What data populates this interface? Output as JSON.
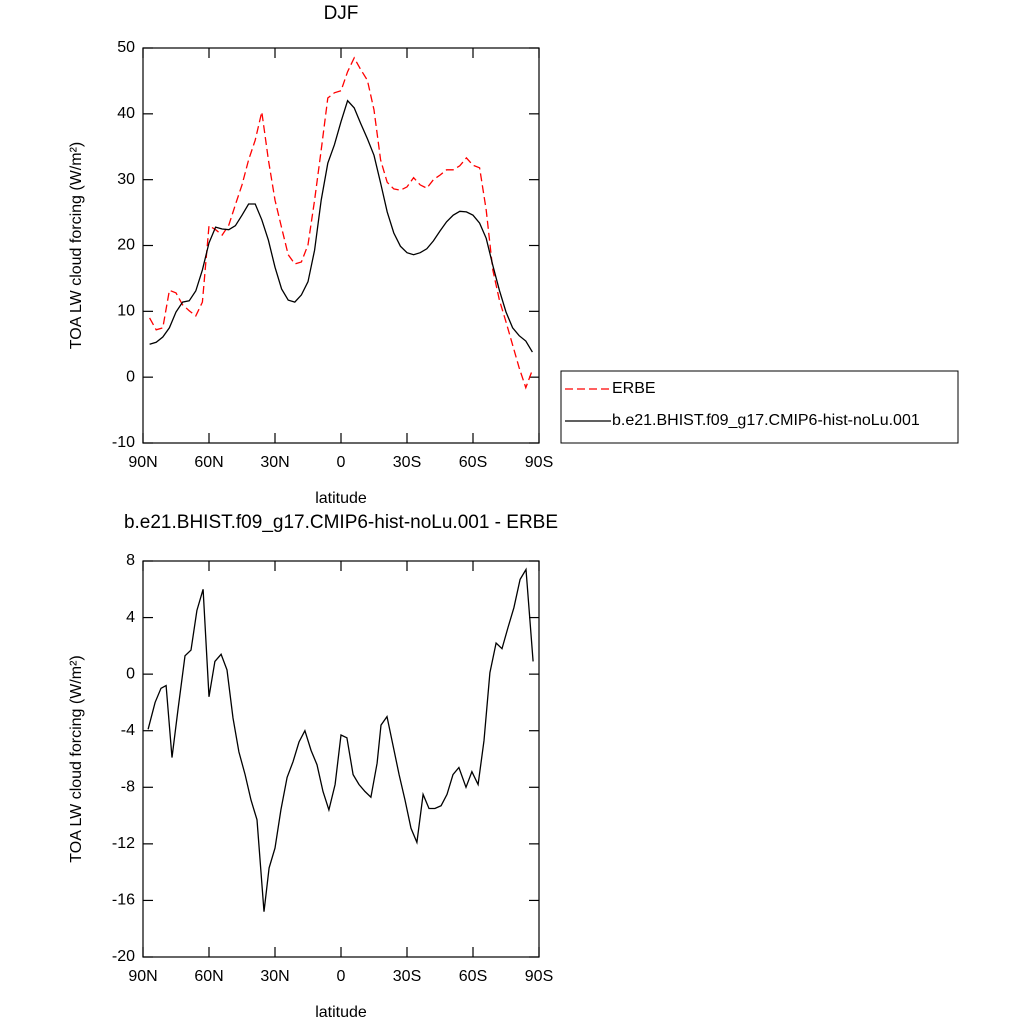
{
  "chart_data": [
    {
      "type": "line",
      "title": "DJF",
      "xlabel": "latitude",
      "ylabel": "TOA LW cloud forcing (W/m²)",
      "x": [
        87,
        84,
        81,
        78,
        75,
        72,
        69,
        66,
        63,
        60,
        57,
        54,
        51,
        48,
        45,
        42,
        39,
        36,
        33,
        30,
        27,
        24,
        21,
        18,
        15,
        12,
        9,
        6,
        3,
        0,
        -3,
        -6,
        -9,
        -12,
        -15,
        -18,
        -21,
        -24,
        -27,
        -30,
        -33,
        -36,
        -39,
        -42,
        -45,
        -48,
        -51,
        -54,
        -57,
        -60,
        -63,
        -66,
        -69,
        -72,
        -75,
        -78,
        -81,
        -84,
        -87
      ],
      "series": [
        {
          "name": "ERBE",
          "color": "#ff0000",
          "line_style": "dashed",
          "values": [
            9.0,
            7.2,
            7.5,
            13.2,
            12.8,
            11.0,
            10.1,
            9.3,
            11.4,
            23.0,
            22.4,
            21.6,
            23.1,
            26.2,
            29.2,
            33.0,
            36.0,
            40.3,
            33.0,
            26.9,
            22.7,
            18.6,
            17.2,
            17.5,
            20.1,
            26.9,
            34.5,
            42.4,
            43.2,
            43.5,
            46.4,
            48.5,
            46.7,
            45.1,
            40.6,
            33.0,
            29.6,
            28.6,
            28.4,
            28.9,
            30.3,
            29.2,
            28.7,
            30.0,
            30.7,
            31.5,
            31.5,
            32.1,
            33.3,
            32.2,
            31.8,
            25.4,
            16.3,
            11.7,
            8.4,
            4.9,
            1.4,
            -1.6,
            1.1
          ]
        },
        {
          "name": "b.e21.BHIST.f09_g17.CMIP6-hist-noLu.001",
          "color": "#000000",
          "line_style": "solid",
          "values": [
            5.0,
            5.3,
            6.1,
            7.5,
            9.9,
            11.4,
            11.6,
            13.1,
            16.3,
            20.4,
            22.8,
            22.5,
            22.4,
            23.0,
            24.6,
            26.3,
            26.3,
            23.9,
            20.8,
            16.7,
            13.4,
            11.7,
            11.4,
            12.5,
            14.5,
            19.3,
            26.9,
            32.5,
            35.3,
            38.8,
            42.0,
            40.9,
            38.5,
            36.2,
            33.7,
            29.5,
            25.1,
            21.9,
            19.9,
            18.9,
            18.6,
            18.9,
            19.5,
            20.7,
            22.2,
            23.6,
            24.6,
            25.2,
            25.1,
            24.6,
            23.4,
            21.1,
            17.0,
            13.2,
            9.9,
            7.5,
            6.3,
            5.5,
            3.8
          ]
        }
      ],
      "xlim": [
        90,
        -90
      ],
      "xticks": [
        {
          "value": 90,
          "label": "90N"
        },
        {
          "value": 60,
          "label": "60N"
        },
        {
          "value": 30,
          "label": "30N"
        },
        0,
        {
          "value": -30,
          "label": "30S"
        },
        {
          "value": -60,
          "label": "60S"
        },
        {
          "value": -90,
          "label": "90S"
        }
      ],
      "ylim": [
        -10,
        50
      ],
      "yticks": [
        -10,
        0,
        10,
        20,
        30,
        40,
        50
      ],
      "legend": "right"
    },
    {
      "type": "line",
      "title": "b.e21.BHIST.f09_g17.CMIP6-hist-noLu.001 - ERBE",
      "xlabel": "latitude",
      "ylabel": "TOA LW cloud forcing (W/m²)",
      "x": [
        87.7,
        84.5,
        81.8,
        79.5,
        76.8,
        74.1,
        70.9,
        68.2,
        65.5,
        62.7,
        60,
        57.3,
        54.5,
        51.8,
        49.1,
        46.4,
        43.6,
        40.9,
        38.2,
        35,
        32.7,
        30,
        27.3,
        24.5,
        21.8,
        19.1,
        16.4,
        13.6,
        10.9,
        8.2,
        5.5,
        2.7,
        0,
        -2.7,
        -5.5,
        -8.2,
        -10.9,
        -13.6,
        -16.4,
        -18.2,
        -20.9,
        -23.6,
        -26.4,
        -29.1,
        -31.8,
        -34.5,
        -37.3,
        -40,
        -42.7,
        -45.5,
        -48.2,
        -50.9,
        -53.6,
        -56.8,
        -59.5,
        -62.3,
        -65,
        -67.7,
        -70.5,
        -73.2,
        -75.9,
        -78.6,
        -81.4,
        -84.1,
        -87.3
      ],
      "values": [
        -3.9,
        -2.0,
        -1.0,
        -0.8,
        -5.9,
        -2.5,
        1.3,
        1.7,
        4.5,
        6.0,
        -1.6,
        0.9,
        1.4,
        0.3,
        -3.1,
        -5.5,
        -7.1,
        -8.9,
        -10.3,
        -16.8,
        -13.7,
        -12.3,
        -9.6,
        -7.3,
        -6.2,
        -4.8,
        -4.0,
        -5.4,
        -6.4,
        -8.3,
        -9.6,
        -7.8,
        -4.3,
        -4.5,
        -7.1,
        -7.8,
        -8.3,
        -8.7,
        -6.3,
        -3.6,
        -3.0,
        -5.0,
        -7.1,
        -8.9,
        -10.9,
        -11.9,
        -8.5,
        -9.5,
        -9.5,
        -9.3,
        -8.5,
        -7.1,
        -6.6,
        -8.0,
        -6.9,
        -7.8,
        -4.7,
        0.1,
        2.2,
        1.8,
        3.3,
        4.7,
        6.7,
        7.4,
        0.9
      ],
      "color": "#000000",
      "xlim": [
        90,
        -90
      ],
      "xticks": [
        {
          "value": 90,
          "label": "90N"
        },
        {
          "value": 60,
          "label": "60N"
        },
        {
          "value": 30,
          "label": "30N"
        },
        0,
        {
          "value": -30,
          "label": "30S"
        },
        {
          "value": -60,
          "label": "60S"
        },
        {
          "value": -90,
          "label": "90S"
        }
      ],
      "ylim": [
        -20,
        8
      ],
      "yticks": [
        -20,
        -16,
        -12,
        -8,
        -4,
        0,
        4,
        8
      ]
    }
  ]
}
